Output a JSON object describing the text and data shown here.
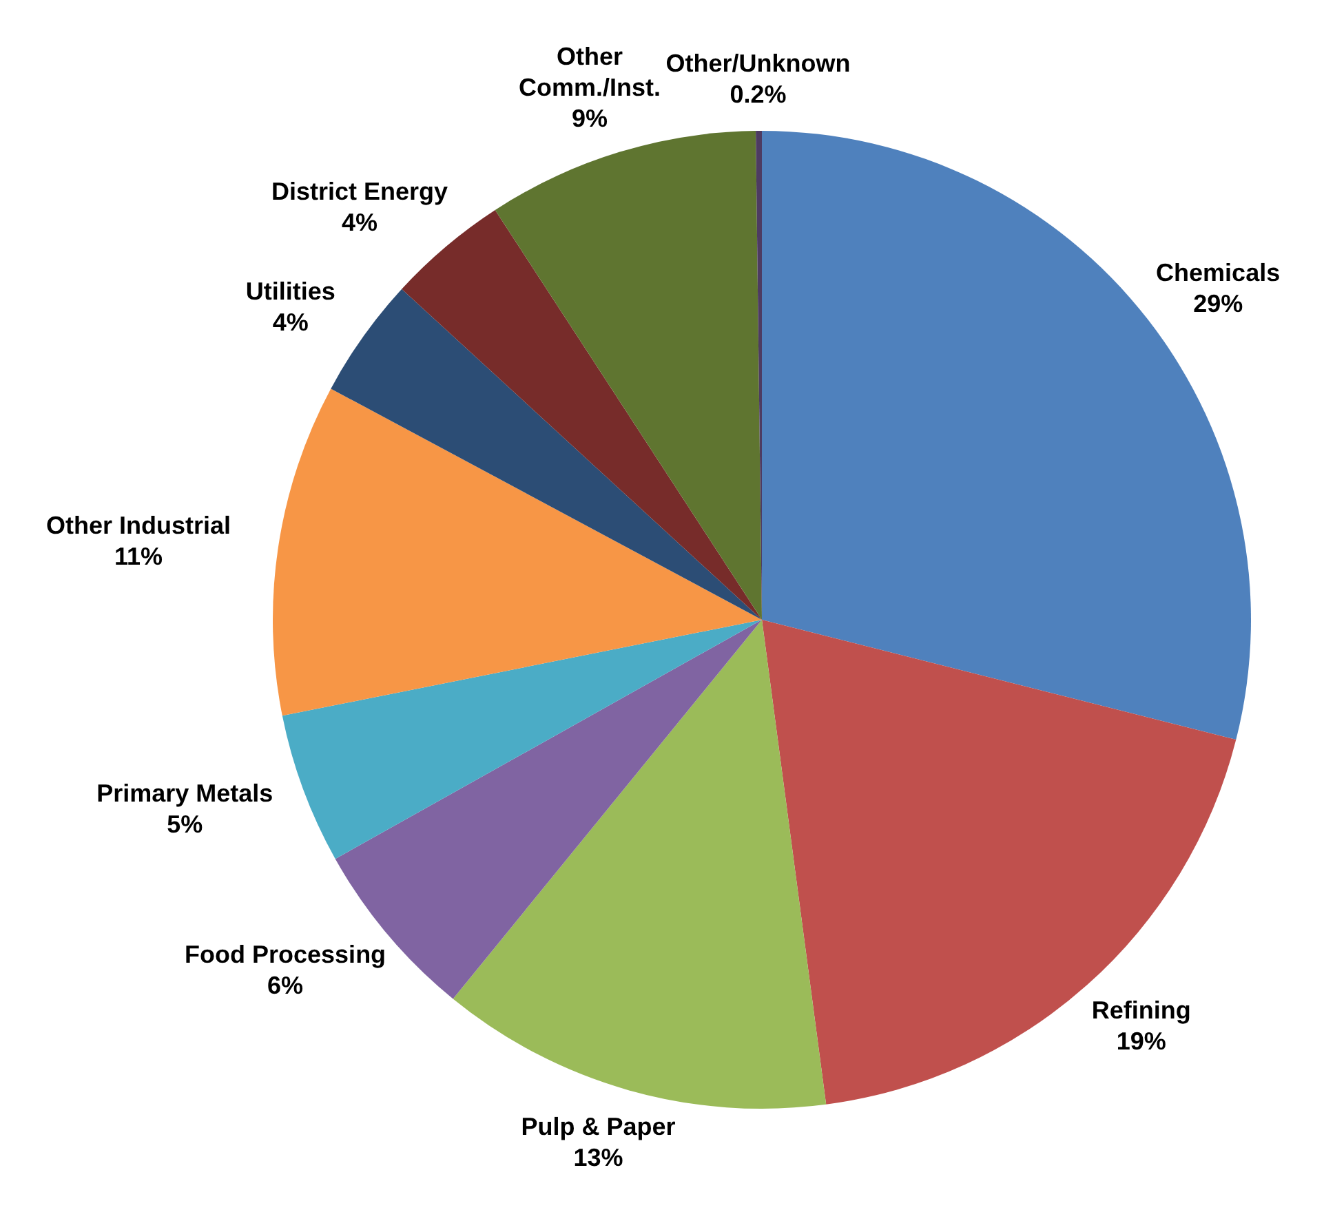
{
  "chart_data": {
    "type": "pie",
    "categories": [
      "Chemicals",
      "Refining",
      "Pulp & Paper",
      "Food Processing",
      "Primary Metals",
      "Other Industrial",
      "Utilities",
      "District Energy",
      "Other Comm./Inst.",
      "Other/Unknown"
    ],
    "values": [
      29,
      19,
      13,
      6,
      5,
      11,
      4,
      4,
      9,
      0.2
    ],
    "value_labels": [
      "29%",
      "19%",
      "13%",
      "6%",
      "5%",
      "11%",
      "4%",
      "4%",
      "9%",
      "0.2%"
    ],
    "colors": [
      "#4f81bd",
      "#c0504d",
      "#9bbb59",
      "#8064a2",
      "#4bacc6",
      "#f79646",
      "#2c4d75",
      "#772c2a",
      "#5f7530",
      "#4d3b62"
    ],
    "legend": false
  }
}
